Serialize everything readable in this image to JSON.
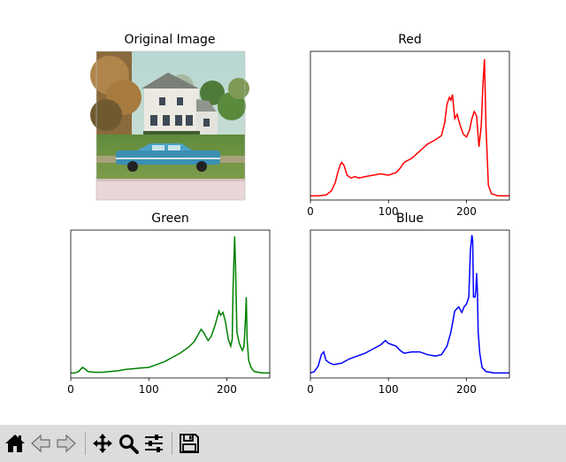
{
  "figure": {
    "image_panel": {
      "title": "Original Image"
    }
  },
  "chart_data": [
    {
      "type": "line",
      "title": "Red",
      "color": "#ff0000",
      "xlim": [
        0,
        255
      ],
      "xticks": [
        0,
        100,
        200
      ],
      "yticks_visible": false,
      "points": [
        [
          0,
          0.005
        ],
        [
          10,
          0.005
        ],
        [
          20,
          0.01
        ],
        [
          27,
          0.04
        ],
        [
          32,
          0.1
        ],
        [
          35,
          0.17
        ],
        [
          38,
          0.22
        ],
        [
          40,
          0.24
        ],
        [
          43,
          0.22
        ],
        [
          47,
          0.15
        ],
        [
          52,
          0.13
        ],
        [
          57,
          0.14
        ],
        [
          62,
          0.13
        ],
        [
          70,
          0.14
        ],
        [
          80,
          0.15
        ],
        [
          90,
          0.16
        ],
        [
          100,
          0.15
        ],
        [
          110,
          0.17
        ],
        [
          115,
          0.2
        ],
        [
          120,
          0.24
        ],
        [
          130,
          0.27
        ],
        [
          140,
          0.32
        ],
        [
          150,
          0.37
        ],
        [
          160,
          0.4
        ],
        [
          168,
          0.43
        ],
        [
          172,
          0.52
        ],
        [
          175,
          0.65
        ],
        [
          178,
          0.7
        ],
        [
          180,
          0.68
        ],
        [
          182,
          0.72
        ],
        [
          185,
          0.55
        ],
        [
          188,
          0.58
        ],
        [
          192,
          0.5
        ],
        [
          196,
          0.44
        ],
        [
          200,
          0.42
        ],
        [
          204,
          0.47
        ],
        [
          207,
          0.55
        ],
        [
          210,
          0.6
        ],
        [
          213,
          0.57
        ],
        [
          216,
          0.35
        ],
        [
          219,
          0.5
        ],
        [
          221,
          0.78
        ],
        [
          223,
          0.97
        ],
        [
          225,
          0.5
        ],
        [
          228,
          0.08
        ],
        [
          232,
          0.02
        ],
        [
          240,
          0.005
        ],
        [
          255,
          0.005
        ]
      ]
    },
    {
      "type": "line",
      "title": "Green",
      "color": "#008000",
      "xlim": [
        0,
        255
      ],
      "xticks": [
        0,
        100,
        200
      ],
      "yticks_visible": false,
      "points": [
        [
          0,
          0.01
        ],
        [
          5,
          0.01
        ],
        [
          10,
          0.02
        ],
        [
          15,
          0.05
        ],
        [
          18,
          0.04
        ],
        [
          22,
          0.02
        ],
        [
          30,
          0.015
        ],
        [
          40,
          0.015
        ],
        [
          50,
          0.02
        ],
        [
          60,
          0.025
        ],
        [
          70,
          0.035
        ],
        [
          80,
          0.04
        ],
        [
          90,
          0.045
        ],
        [
          100,
          0.05
        ],
        [
          110,
          0.07
        ],
        [
          120,
          0.09
        ],
        [
          130,
          0.12
        ],
        [
          140,
          0.15
        ],
        [
          150,
          0.19
        ],
        [
          158,
          0.23
        ],
        [
          163,
          0.28
        ],
        [
          167,
          0.32
        ],
        [
          170,
          0.3
        ],
        [
          173,
          0.27
        ],
        [
          176,
          0.24
        ],
        [
          180,
          0.27
        ],
        [
          185,
          0.35
        ],
        [
          188,
          0.41
        ],
        [
          190,
          0.45
        ],
        [
          192,
          0.42
        ],
        [
          195,
          0.44
        ],
        [
          198,
          0.38
        ],
        [
          202,
          0.25
        ],
        [
          205,
          0.2
        ],
        [
          207,
          0.25
        ],
        [
          208,
          0.6
        ],
        [
          210,
          0.98
        ],
        [
          211,
          0.8
        ],
        [
          213,
          0.3
        ],
        [
          216,
          0.22
        ],
        [
          220,
          0.17
        ],
        [
          222,
          0.2
        ],
        [
          224,
          0.4
        ],
        [
          225,
          0.55
        ],
        [
          226,
          0.25
        ],
        [
          228,
          0.1
        ],
        [
          231,
          0.05
        ],
        [
          235,
          0.02
        ],
        [
          245,
          0.01
        ],
        [
          255,
          0.01
        ]
      ]
    },
    {
      "type": "line",
      "title": "Blue",
      "color": "#0000ff",
      "xlim": [
        0,
        255
      ],
      "xticks": [
        0,
        100,
        200
      ],
      "yticks_visible": false,
      "points": [
        [
          0,
          0.01
        ],
        [
          5,
          0.02
        ],
        [
          10,
          0.06
        ],
        [
          14,
          0.14
        ],
        [
          17,
          0.16
        ],
        [
          20,
          0.1
        ],
        [
          25,
          0.08
        ],
        [
          30,
          0.07
        ],
        [
          40,
          0.08
        ],
        [
          50,
          0.11
        ],
        [
          60,
          0.13
        ],
        [
          70,
          0.15
        ],
        [
          80,
          0.18
        ],
        [
          90,
          0.21
        ],
        [
          96,
          0.24
        ],
        [
          100,
          0.22
        ],
        [
          110,
          0.2
        ],
        [
          115,
          0.17
        ],
        [
          120,
          0.15
        ],
        [
          130,
          0.16
        ],
        [
          140,
          0.16
        ],
        [
          150,
          0.14
        ],
        [
          160,
          0.13
        ],
        [
          168,
          0.14
        ],
        [
          175,
          0.2
        ],
        [
          180,
          0.3
        ],
        [
          185,
          0.45
        ],
        [
          190,
          0.48
        ],
        [
          194,
          0.44
        ],
        [
          197,
          0.48
        ],
        [
          200,
          0.5
        ],
        [
          203,
          0.55
        ],
        [
          205,
          0.88
        ],
        [
          207,
          0.99
        ],
        [
          208,
          0.95
        ],
        [
          209,
          0.55
        ],
        [
          211,
          0.55
        ],
        [
          212,
          0.6
        ],
        [
          213,
          0.72
        ],
        [
          214,
          0.6
        ],
        [
          215,
          0.3
        ],
        [
          217,
          0.15
        ],
        [
          220,
          0.05
        ],
        [
          225,
          0.02
        ],
        [
          235,
          0.01
        ],
        [
          255,
          0.01
        ]
      ]
    }
  ],
  "toolbar": {
    "buttons": [
      {
        "name": "home-button",
        "icon": "home-icon",
        "tooltip": "Reset original view"
      },
      {
        "name": "back-button",
        "icon": "back-arrow-icon",
        "tooltip": "Back to previous view"
      },
      {
        "name": "forward-button",
        "icon": "forward-arrow-icon",
        "tooltip": "Forward to next view"
      },
      {
        "name": "pan-button",
        "icon": "move-icon",
        "tooltip": "Pan axes"
      },
      {
        "name": "zoom-button",
        "icon": "zoom-icon",
        "tooltip": "Zoom to rectangle"
      },
      {
        "name": "subplots-button",
        "icon": "sliders-icon",
        "tooltip": "Configure subplots"
      },
      {
        "name": "save-button",
        "icon": "floppy-disk-icon",
        "tooltip": "Save the figure"
      }
    ]
  }
}
